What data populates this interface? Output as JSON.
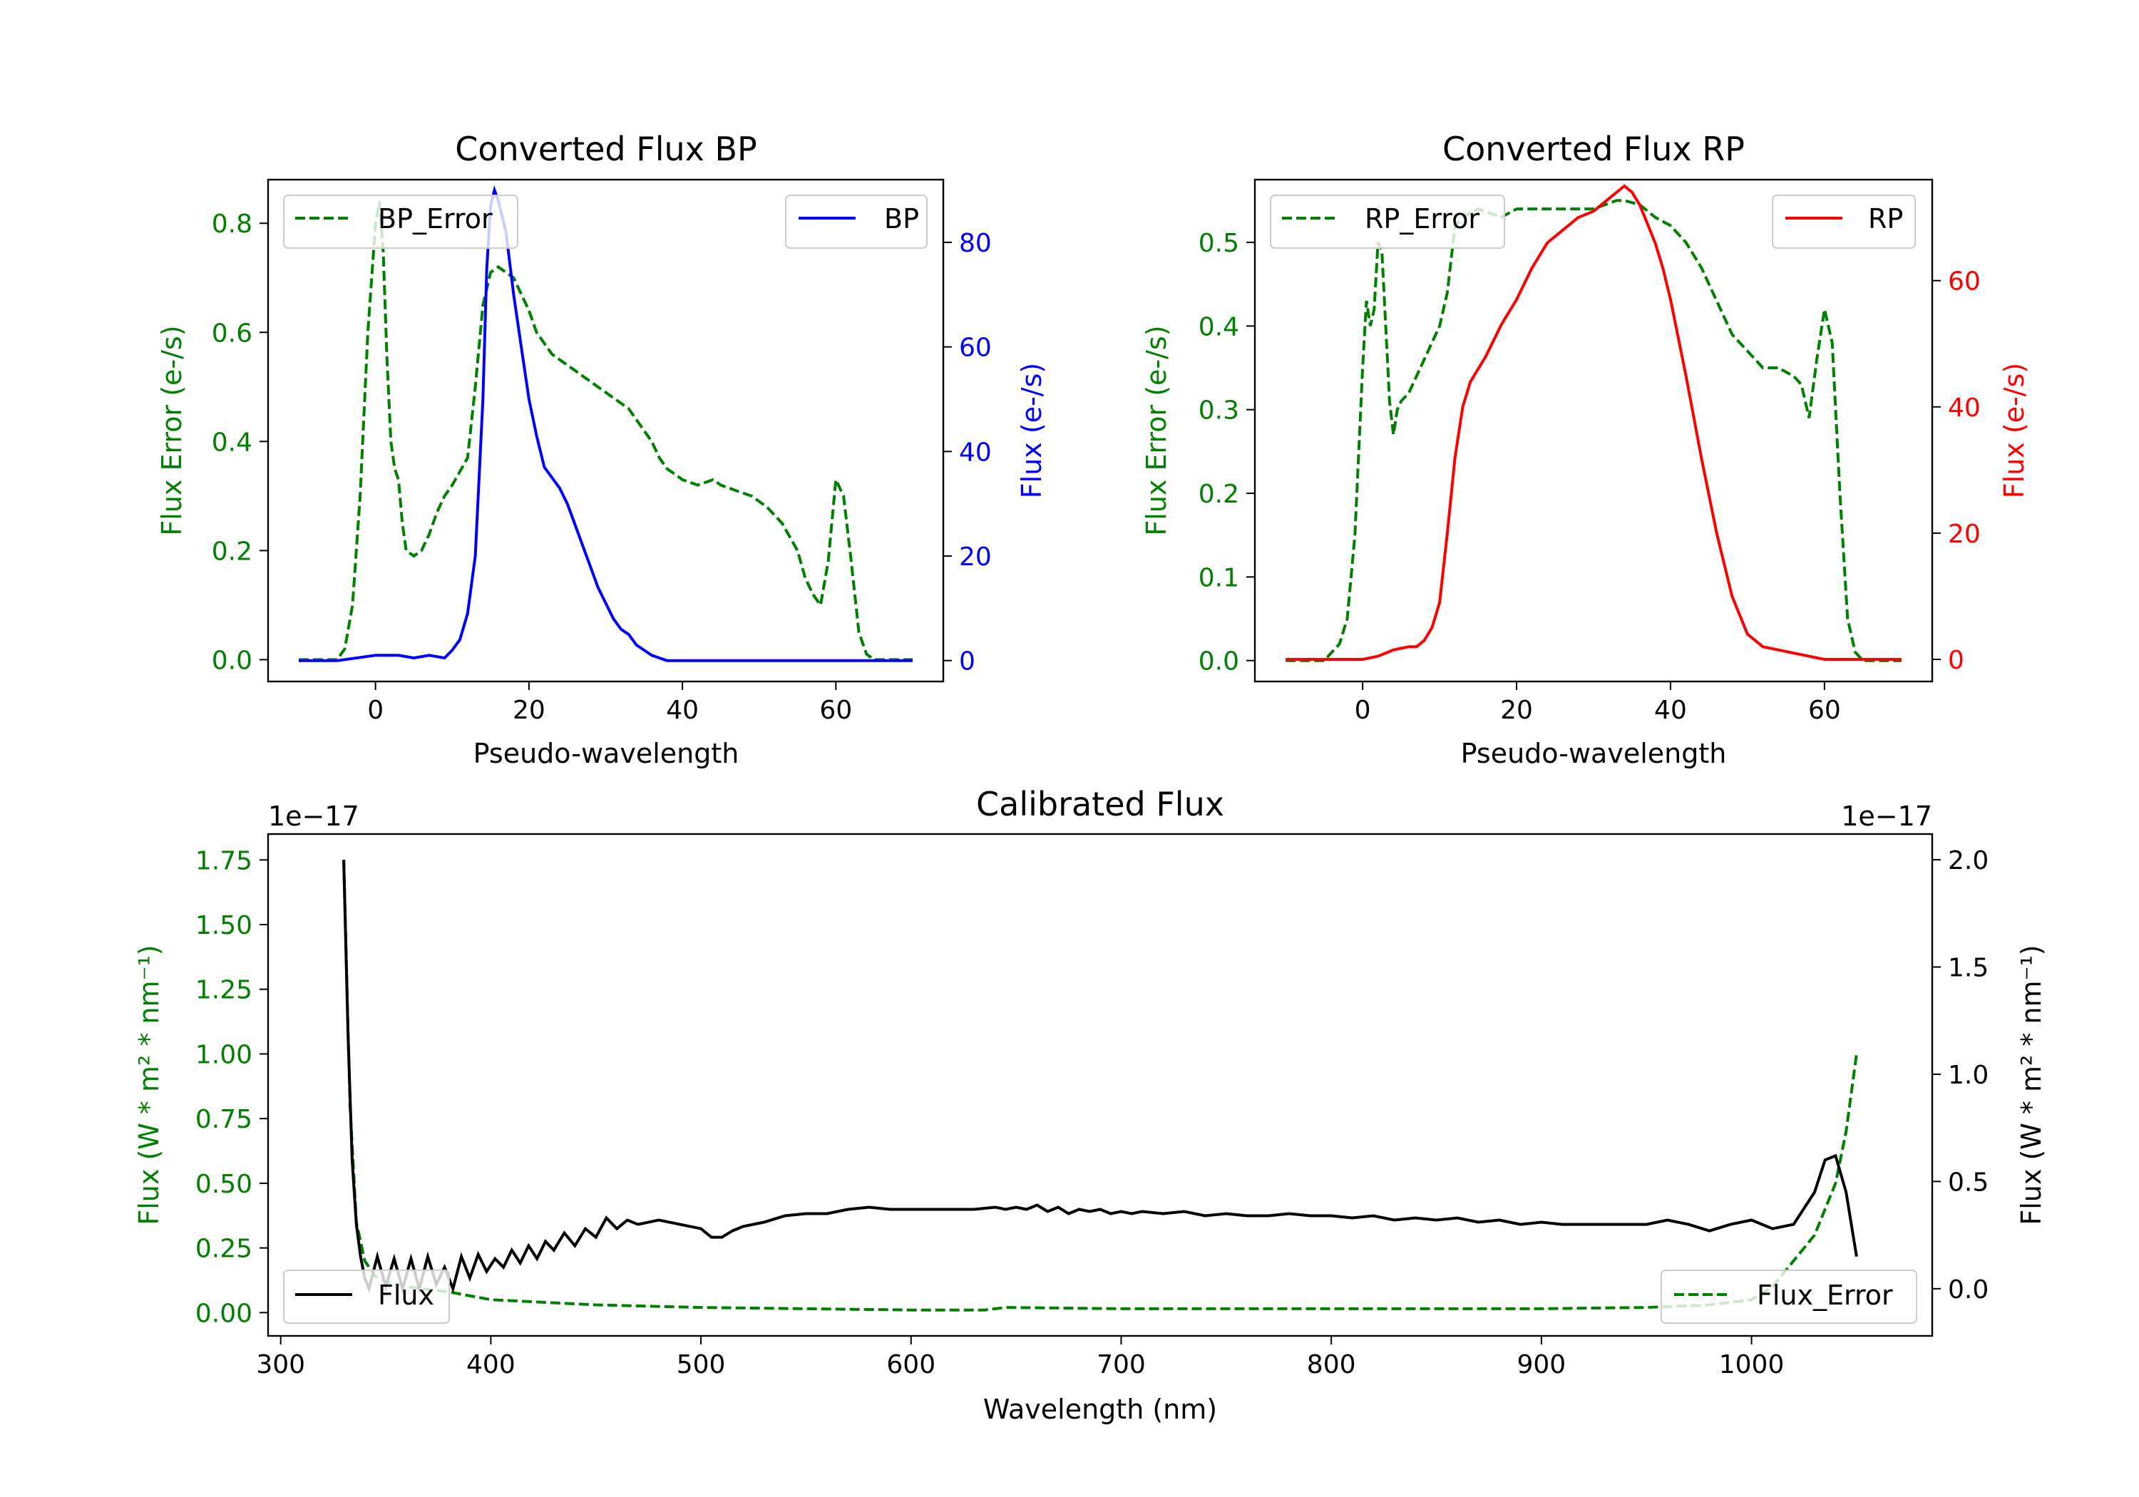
{
  "colors": {
    "bp": "#0000ff",
    "rp": "#ff0000",
    "error": "#008000",
    "flux": "#000000",
    "axis": "#000000"
  },
  "chart_data": [
    {
      "id": "bp",
      "type": "line",
      "title": "Converted Flux BP",
      "xlabel": "Pseudo-wavelength",
      "ylabel_left": "Flux Error (e-/s)",
      "ylabel_right": "Flux (e-/s)",
      "xlim": [
        -14,
        74
      ],
      "ylim_left": [
        -0.04,
        0.88
      ],
      "ylim_right": [
        -4,
        92
      ],
      "xticks": [
        0,
        20,
        40,
        60
      ],
      "yticks_left": [
        0.0,
        0.2,
        0.4,
        0.6,
        0.8
      ],
      "yticks_left_labels": [
        "0.0",
        "0.2",
        "0.4",
        "0.6",
        "0.8"
      ],
      "yticks_right": [
        0,
        20,
        40,
        60,
        80
      ],
      "yticks_right_labels": [
        "0",
        "20",
        "40",
        "60",
        "80"
      ],
      "legend_left": "BP_Error",
      "legend_right": "BP",
      "error_series": {
        "name": "BP_Error",
        "x": [
          -10,
          -5,
          -4,
          -3,
          -2,
          -1,
          0,
          0.5,
          1,
          1.5,
          2,
          2.5,
          3,
          3.5,
          4,
          5,
          6,
          7,
          8,
          9,
          10,
          12,
          13,
          14,
          15,
          16,
          17,
          18,
          19,
          20,
          21,
          22,
          23,
          24,
          25,
          26,
          27,
          28,
          29,
          30,
          31,
          32,
          33,
          34,
          35,
          36,
          37,
          38,
          39,
          40,
          42,
          44,
          45,
          47,
          49,
          51,
          53,
          55,
          56,
          57,
          58,
          59,
          60,
          61,
          62,
          63,
          64,
          65,
          70
        ],
        "y": [
          0.0,
          0.0,
          0.02,
          0.1,
          0.3,
          0.6,
          0.8,
          0.84,
          0.75,
          0.55,
          0.4,
          0.35,
          0.33,
          0.25,
          0.2,
          0.19,
          0.2,
          0.23,
          0.27,
          0.3,
          0.32,
          0.37,
          0.5,
          0.65,
          0.71,
          0.72,
          0.71,
          0.7,
          0.67,
          0.64,
          0.6,
          0.58,
          0.56,
          0.55,
          0.54,
          0.53,
          0.52,
          0.51,
          0.5,
          0.49,
          0.48,
          0.47,
          0.46,
          0.44,
          0.42,
          0.4,
          0.37,
          0.35,
          0.34,
          0.33,
          0.32,
          0.33,
          0.32,
          0.31,
          0.3,
          0.28,
          0.25,
          0.2,
          0.15,
          0.12,
          0.1,
          0.18,
          0.33,
          0.3,
          0.18,
          0.05,
          0.01,
          0.0,
          0.0
        ]
      },
      "flux_series": {
        "name": "BP",
        "x": [
          -10,
          -5,
          0,
          3,
          5,
          7,
          9,
          10,
          11,
          12,
          13,
          14,
          14.5,
          15,
          15.5,
          16,
          17,
          18,
          19,
          20,
          21,
          22,
          23,
          24,
          25,
          26,
          27,
          28,
          29,
          30,
          31,
          32,
          33,
          34,
          35,
          36,
          37,
          38,
          40,
          42,
          44,
          46,
          48,
          50,
          55,
          60,
          65,
          70
        ],
        "y": [
          0,
          0,
          1,
          1,
          0.5,
          1,
          0.5,
          2,
          4,
          9,
          20,
          50,
          75,
          87,
          90,
          88,
          82,
          70,
          60,
          50,
          43,
          37,
          35,
          33,
          30,
          26,
          22,
          18,
          14,
          11,
          8,
          6,
          5,
          3,
          2,
          1,
          0.5,
          0,
          0,
          0,
          0,
          0,
          0,
          0,
          0,
          0,
          0,
          0
        ]
      }
    },
    {
      "id": "rp",
      "type": "line",
      "title": "Converted Flux RP",
      "xlabel": "Pseudo-wavelength",
      "ylabel_left": "Flux Error (e-/s)",
      "ylabel_right": "Flux (e-/s)",
      "xlim": [
        -14,
        74
      ],
      "ylim_left": [
        -0.025,
        0.575
      ],
      "ylim_right": [
        -3.5,
        76
      ],
      "xticks": [
        0,
        20,
        40,
        60
      ],
      "yticks_left": [
        0.0,
        0.1,
        0.2,
        0.3,
        0.4,
        0.5
      ],
      "yticks_left_labels": [
        "0.0",
        "0.1",
        "0.2",
        "0.3",
        "0.4",
        "0.5"
      ],
      "yticks_right": [
        0,
        20,
        40,
        60
      ],
      "yticks_right_labels": [
        "0",
        "20",
        "40",
        "60"
      ],
      "legend_left": "RP_Error",
      "legend_right": "RP",
      "error_series": {
        "name": "RP_Error",
        "x": [
          -10,
          -5,
          -4,
          -3,
          -2,
          -1,
          0,
          0.5,
          1,
          1.5,
          2,
          2.5,
          3,
          3.5,
          4,
          4.5,
          5,
          6,
          7,
          8,
          9,
          10,
          11,
          12,
          13,
          15,
          18,
          20,
          25,
          30,
          33,
          34,
          36,
          38,
          40,
          42,
          44,
          46,
          48,
          50,
          52,
          54,
          55,
          56,
          57,
          58,
          59,
          60,
          61,
          62,
          63,
          64,
          65,
          70
        ],
        "y": [
          0.0,
          0.0,
          0.01,
          0.02,
          0.05,
          0.15,
          0.35,
          0.43,
          0.4,
          0.42,
          0.5,
          0.49,
          0.4,
          0.31,
          0.27,
          0.3,
          0.31,
          0.32,
          0.34,
          0.36,
          0.38,
          0.4,
          0.44,
          0.52,
          0.53,
          0.54,
          0.53,
          0.54,
          0.54,
          0.54,
          0.55,
          0.55,
          0.545,
          0.53,
          0.52,
          0.5,
          0.47,
          0.43,
          0.39,
          0.37,
          0.35,
          0.35,
          0.345,
          0.34,
          0.33,
          0.29,
          0.36,
          0.42,
          0.38,
          0.2,
          0.05,
          0.01,
          0.0,
          0.0
        ]
      },
      "flux_series": {
        "name": "RP",
        "x": [
          -10,
          -5,
          0,
          2,
          4,
          6,
          7,
          8,
          9,
          10,
          11,
          12,
          13,
          14,
          16,
          18,
          20,
          22,
          24,
          26,
          28,
          30,
          31,
          32,
          33,
          34,
          35,
          36,
          37,
          38,
          39,
          40,
          42,
          44,
          46,
          48,
          50,
          51,
          52,
          54,
          56,
          58,
          60,
          62,
          65,
          70
        ],
        "y": [
          0,
          0,
          0,
          0.5,
          1.5,
          2,
          2,
          3,
          5,
          9,
          20,
          32,
          40,
          44,
          48,
          53,
          57,
          62,
          66,
          68,
          70,
          71,
          72,
          73,
          74,
          75,
          74,
          72,
          69,
          66,
          62,
          57,
          45,
          32,
          20,
          10,
          4,
          3,
          2,
          1.5,
          1,
          0.5,
          0,
          0,
          0,
          0
        ]
      }
    },
    {
      "id": "calibrated",
      "type": "line",
      "title": "Calibrated Flux",
      "xlabel": "Wavelength (nm)",
      "ylabel_left": "Flux (W * m² * nm⁻¹)",
      "ylabel_right": "Flux (W * m² * nm⁻¹)",
      "scale_left": "1e−17",
      "scale_right": "1e−17",
      "xlim": [
        294,
        1086
      ],
      "ylim_left": [
        -0.09,
        1.85
      ],
      "ylim_right": [
        -0.22,
        2.12
      ],
      "xticks": [
        300,
        400,
        500,
        600,
        700,
        800,
        900,
        1000
      ],
      "yticks_left": [
        0.0,
        0.25,
        0.5,
        0.75,
        1.0,
        1.25,
        1.5,
        1.75
      ],
      "yticks_left_labels": [
        "0.00",
        "0.25",
        "0.50",
        "0.75",
        "1.00",
        "1.25",
        "1.50",
        "1.75"
      ],
      "yticks_right": [
        0.0,
        0.5,
        1.0,
        1.5,
        2.0
      ],
      "yticks_right_labels": [
        "0.0",
        "0.5",
        "1.0",
        "1.5",
        "2.0"
      ],
      "legend_left": "Flux",
      "legend_right": "Flux_Error",
      "error_series": {
        "name": "Flux_Error",
        "x": [
          330,
          333,
          336,
          340,
          345,
          350,
          360,
          380,
          400,
          450,
          500,
          550,
          600,
          635,
          645,
          700,
          800,
          900,
          950,
          980,
          1000,
          1010,
          1020,
          1030,
          1040,
          1045,
          1050
        ],
        "y": [
          1.75,
          0.8,
          0.35,
          0.2,
          0.14,
          0.12,
          0.1,
          0.08,
          0.05,
          0.03,
          0.02,
          0.015,
          0.01,
          0.01,
          0.02,
          0.015,
          0.015,
          0.015,
          0.02,
          0.03,
          0.05,
          0.1,
          0.2,
          0.3,
          0.5,
          0.7,
          1.0
        ]
      },
      "flux_series": {
        "name": "Flux",
        "x": [
          330,
          332,
          334,
          336,
          338,
          340,
          342,
          346,
          350,
          354,
          358,
          362,
          366,
          370,
          374,
          378,
          382,
          386,
          390,
          394,
          398,
          402,
          406,
          410,
          414,
          418,
          422,
          426,
          430,
          435,
          440,
          445,
          450,
          455,
          460,
          465,
          470,
          480,
          490,
          500,
          505,
          510,
          515,
          520,
          530,
          540,
          550,
          560,
          570,
          580,
          590,
          600,
          610,
          620,
          630,
          640,
          645,
          650,
          655,
          660,
          665,
          670,
          675,
          680,
          685,
          690,
          695,
          700,
          705,
          710,
          720,
          730,
          740,
          750,
          760,
          770,
          780,
          790,
          800,
          810,
          820,
          830,
          840,
          850,
          860,
          870,
          880,
          890,
          900,
          910,
          920,
          930,
          940,
          950,
          960,
          970,
          980,
          990,
          1000,
          1005,
          1010,
          1020,
          1030,
          1035,
          1040,
          1045,
          1050
        ],
        "y": [
          2.0,
          1.2,
          0.6,
          0.3,
          0.15,
          0.05,
          0.0,
          0.15,
          0.01,
          0.14,
          0.0,
          0.14,
          0.0,
          0.15,
          0.02,
          0.1,
          0.0,
          0.15,
          0.05,
          0.16,
          0.08,
          0.14,
          0.1,
          0.18,
          0.12,
          0.2,
          0.14,
          0.22,
          0.18,
          0.26,
          0.2,
          0.28,
          0.24,
          0.33,
          0.28,
          0.32,
          0.3,
          0.32,
          0.3,
          0.28,
          0.24,
          0.24,
          0.27,
          0.29,
          0.31,
          0.34,
          0.35,
          0.35,
          0.37,
          0.38,
          0.37,
          0.37,
          0.37,
          0.37,
          0.37,
          0.38,
          0.37,
          0.38,
          0.37,
          0.39,
          0.36,
          0.38,
          0.35,
          0.37,
          0.36,
          0.37,
          0.35,
          0.36,
          0.35,
          0.36,
          0.35,
          0.36,
          0.34,
          0.35,
          0.34,
          0.34,
          0.35,
          0.34,
          0.34,
          0.33,
          0.34,
          0.32,
          0.33,
          0.32,
          0.33,
          0.31,
          0.32,
          0.3,
          0.31,
          0.3,
          0.3,
          0.3,
          0.3,
          0.3,
          0.32,
          0.3,
          0.27,
          0.3,
          0.32,
          0.3,
          0.28,
          0.3,
          0.45,
          0.6,
          0.62,
          0.45,
          0.15
        ]
      }
    }
  ]
}
